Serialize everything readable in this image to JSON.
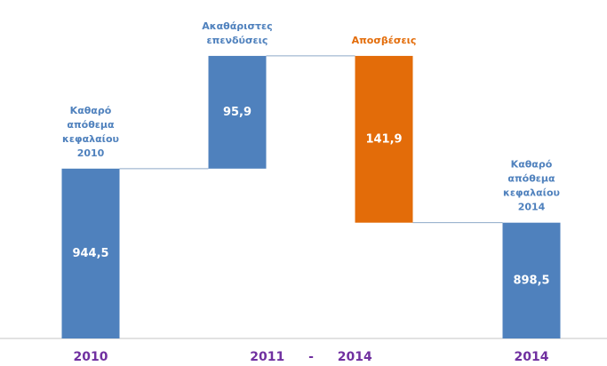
{
  "chart_data": {
    "type": "waterfall",
    "categories": [
      [
        "Καθαρό",
        "απόθεμα",
        "κεφαλαίου",
        "2010"
      ],
      [
        "Ακαθάριστες",
        "επενδύσεις"
      ],
      [
        "Αποσβέσεις"
      ],
      [
        "Καθαρό",
        "απόθεμα",
        "κεφαλαίου",
        "2014"
      ]
    ],
    "values": [
      944.5,
      95.9,
      141.9,
      898.5
    ],
    "value_labels": [
      "944,5",
      "95,9",
      "141,9",
      "898,5"
    ],
    "kinds": [
      "total",
      "increase",
      "decrease",
      "total"
    ],
    "colors": [
      "#4f81bd",
      "#4f81bd",
      "#e36c09",
      "#4f81bd"
    ],
    "x_labels": [
      "2010",
      "2011 - 2014",
      "2014"
    ],
    "ylim": [
      800,
      1060
    ]
  }
}
